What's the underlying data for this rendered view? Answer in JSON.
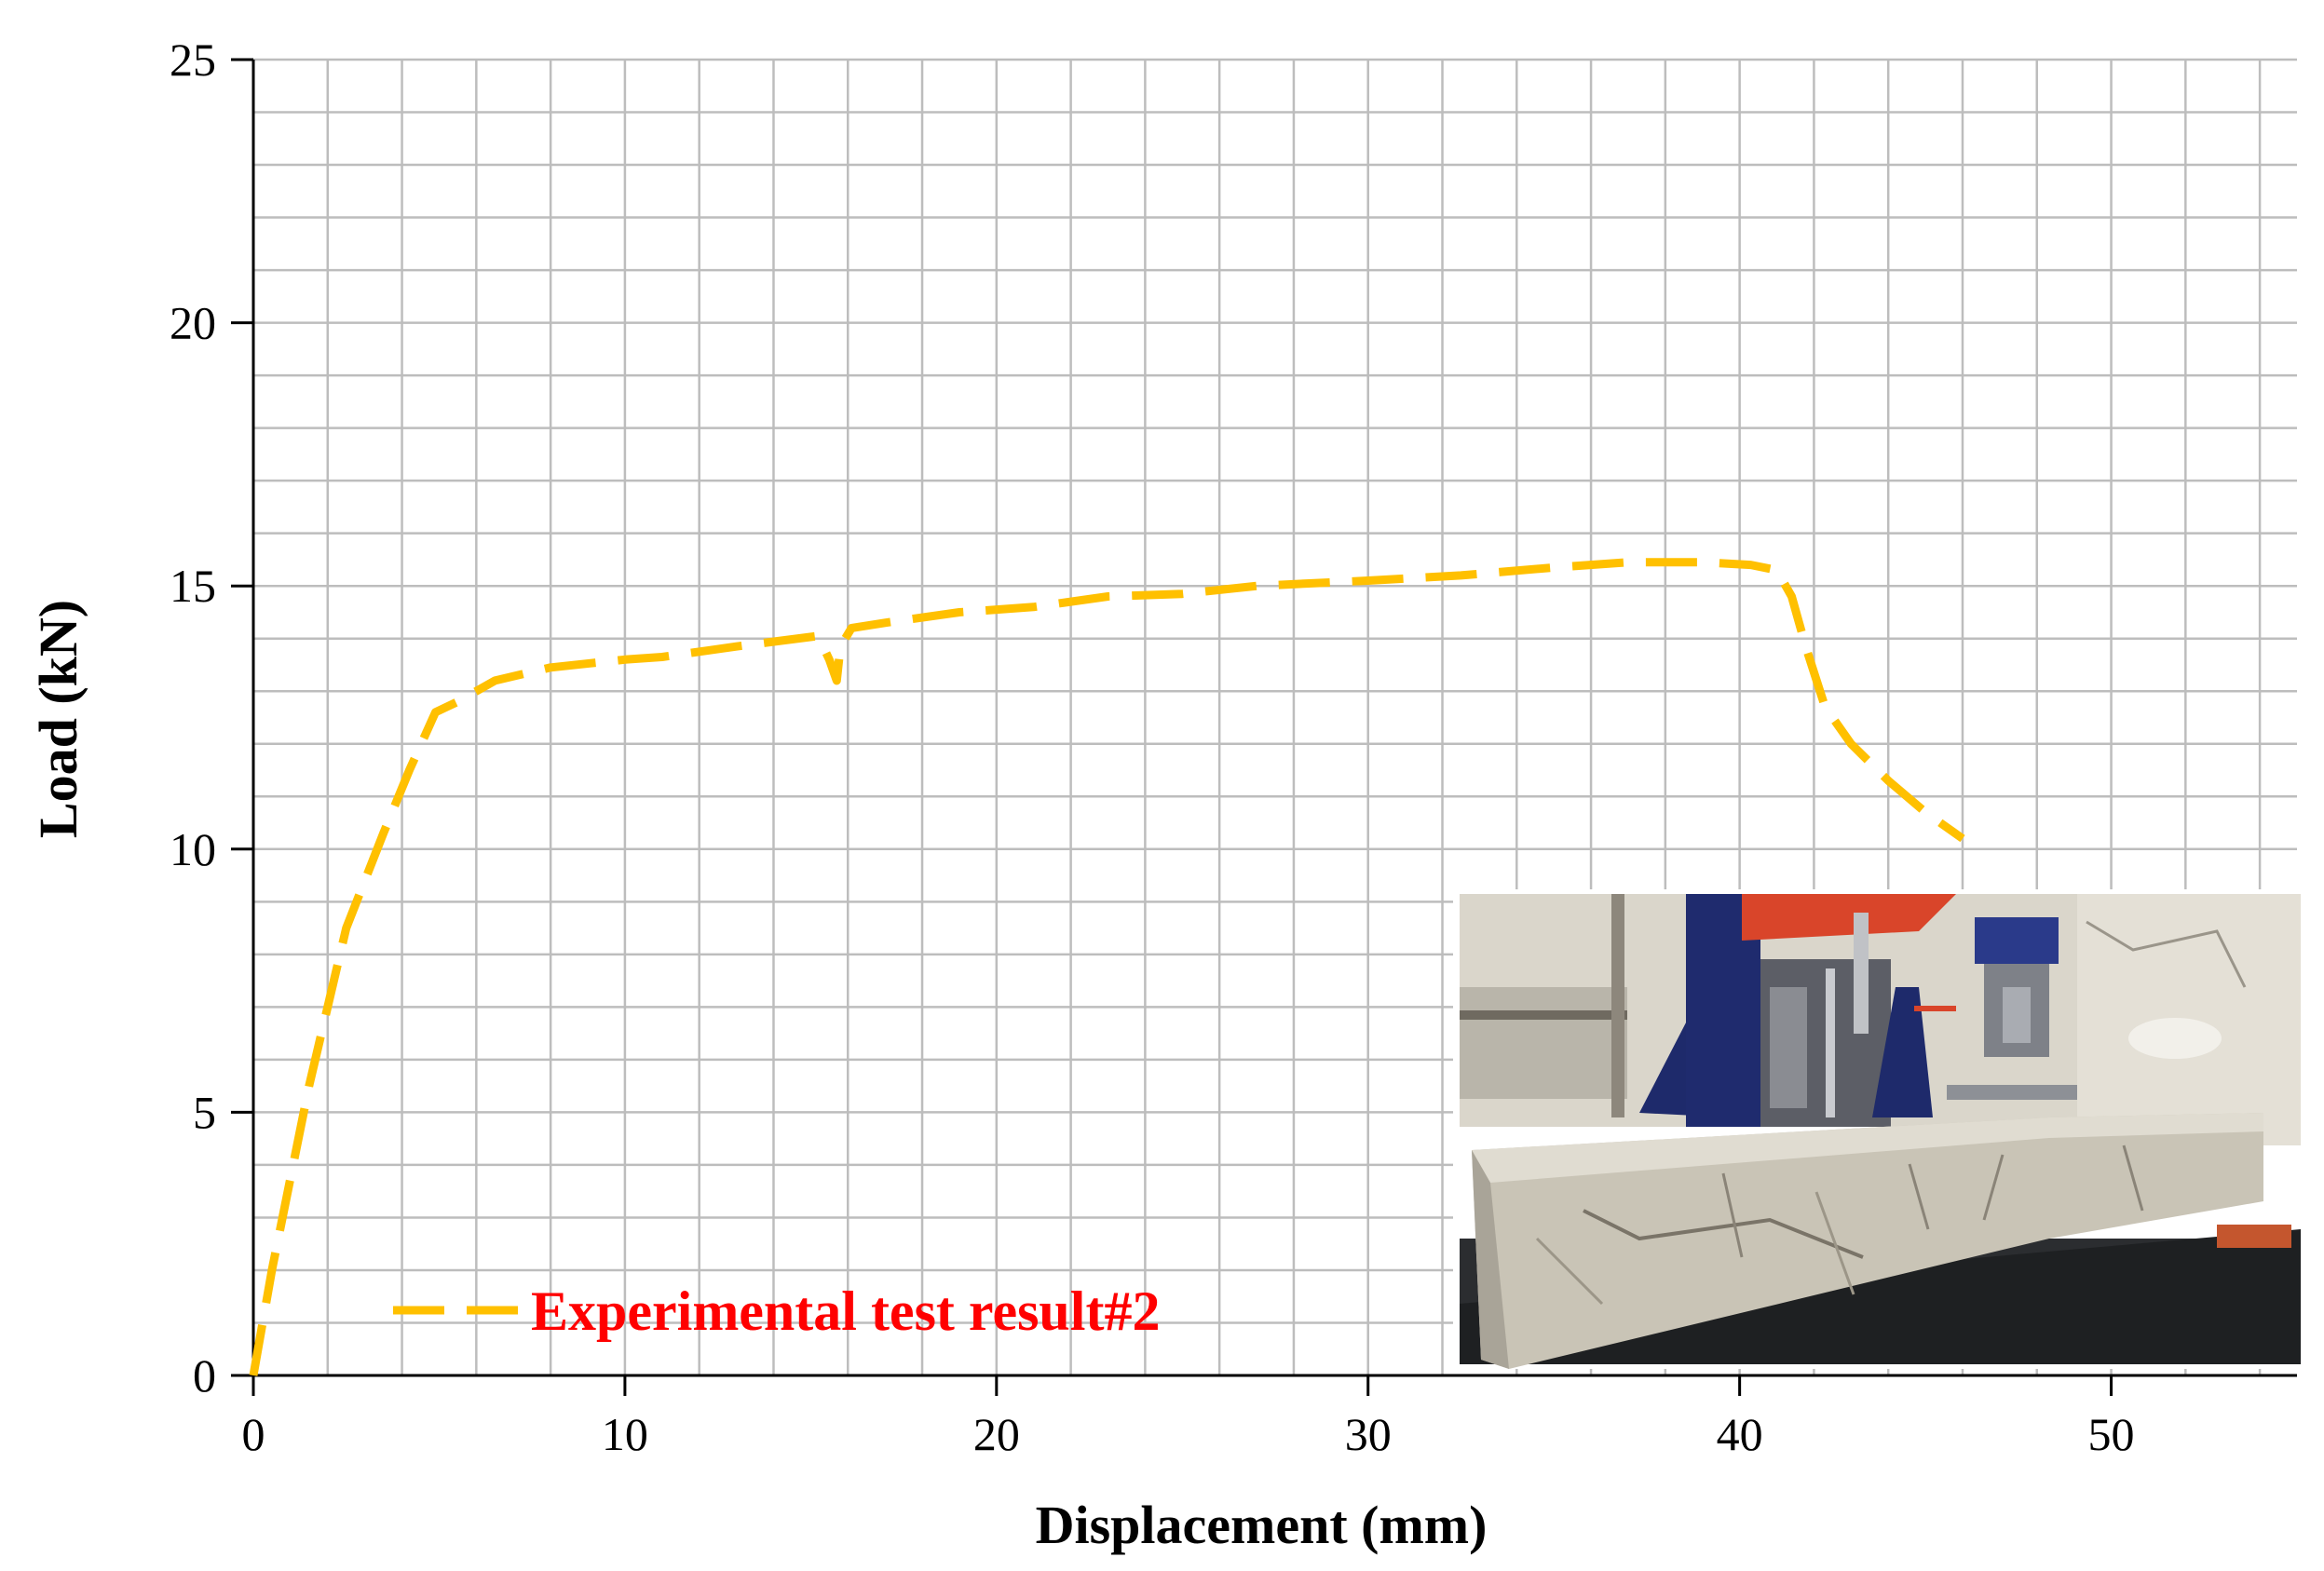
{
  "chart_data": {
    "type": "line",
    "xlabel": "Displacement (mm)",
    "ylabel": "Load (kN)",
    "xlim": [
      0,
      55
    ],
    "ylim": [
      0,
      25
    ],
    "x_ticks": [
      0,
      10,
      20,
      30,
      40,
      50
    ],
    "y_ticks": [
      0,
      5,
      10,
      15,
      20,
      25
    ],
    "grid": true,
    "minor_grid_step_x": 2,
    "minor_grid_step_y": 1,
    "legend_position": "bottom-left",
    "series": [
      {
        "name": "Experimental test result#2",
        "color": "#FFC000",
        "line_style": "dashed",
        "x": [
          0,
          0.5,
          1.5,
          2.5,
          3.5,
          4.2,
          4.9,
          5.5,
          6.5,
          8,
          10,
          11,
          13,
          15.2,
          15.5,
          15.7,
          15.8,
          16.1,
          17,
          19,
          21,
          23,
          25,
          27,
          30,
          32.5,
          35,
          37,
          39,
          40.3,
          41,
          41.4,
          41.8,
          42.3,
          43,
          44,
          45,
          46
        ],
        "values": [
          0,
          2,
          5.5,
          8.5,
          10.3,
          11.5,
          12.6,
          12.8,
          13.2,
          13.45,
          13.6,
          13.65,
          13.85,
          14.05,
          13.6,
          13.2,
          13.85,
          14.2,
          14.3,
          14.5,
          14.6,
          14.8,
          14.85,
          15.0,
          15.1,
          15.2,
          15.35,
          15.45,
          15.45,
          15.4,
          15.3,
          14.8,
          13.8,
          12.7,
          12.0,
          11.3,
          10.7,
          10.2
        ]
      }
    ]
  },
  "legend": {
    "label": "Experimental test result#2",
    "text_color": "#FF0000"
  },
  "inset_photo": {
    "subject": "reinforced-concrete-beam-after-flexural-test",
    "colors": {
      "wall": "#D8D4C8",
      "frame_blue": "#1E2A6B",
      "frame_red": "#D9452A",
      "concrete": "#C9C4B6",
      "floor": "#2A2C2E"
    }
  }
}
